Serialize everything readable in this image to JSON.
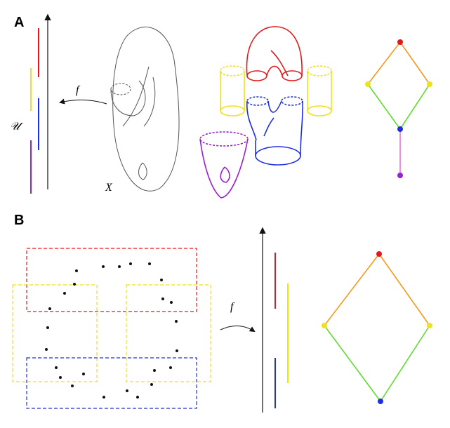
{
  "panels": {
    "a": {
      "label": "A",
      "map_label": "f",
      "space_label": "X",
      "cover_label": "𝒰"
    },
    "b": {
      "label": "B",
      "map_label": "f"
    }
  },
  "colors": {
    "red": "#e3181c",
    "yellow": "#f0e11a",
    "blue": "#1f2ee0",
    "purple": "#9b1fd1",
    "orange": "#f39a1e",
    "green": "#5fdc2e",
    "pink": "#e07ad0",
    "gray": "#555555",
    "black": "#111111"
  }
}
